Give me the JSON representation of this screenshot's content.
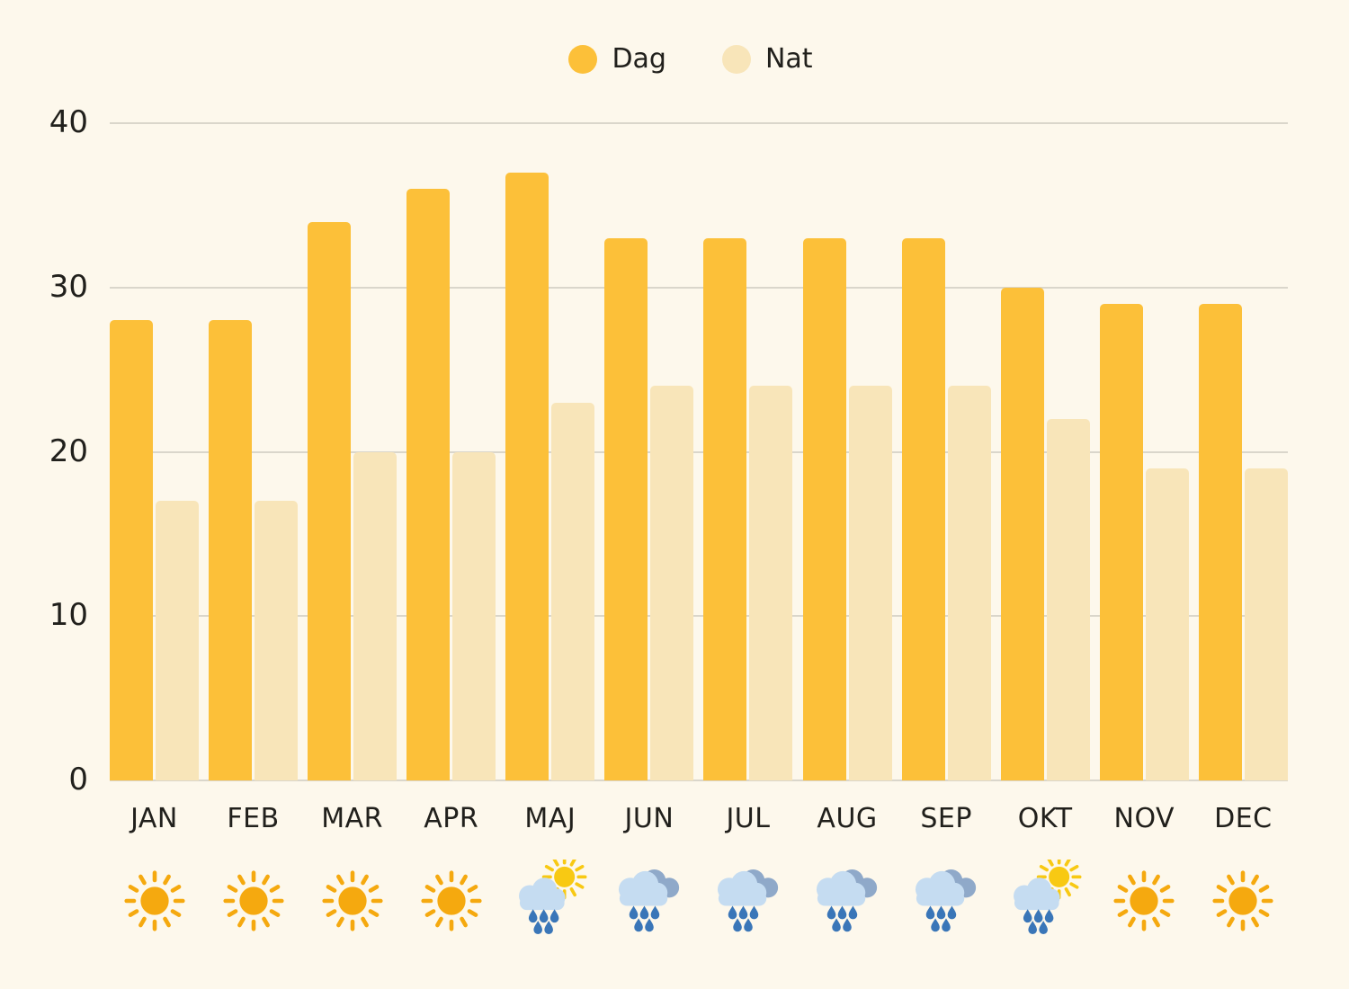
{
  "legend": {
    "dag_label": "Dag",
    "nat_label": "Nat"
  },
  "chart_data": {
    "type": "bar",
    "categories": [
      "JAN",
      "FEB",
      "MAR",
      "APR",
      "MAJ",
      "JUN",
      "JUL",
      "AUG",
      "SEP",
      "OKT",
      "NOV",
      "DEC"
    ],
    "series": [
      {
        "name": "Dag",
        "values": [
          28,
          28,
          34,
          36,
          37,
          33,
          33,
          33,
          33,
          30,
          29,
          29
        ],
        "color": "#FCC039"
      },
      {
        "name": "Nat",
        "values": [
          17,
          17,
          20,
          20,
          23,
          24,
          24,
          24,
          24,
          22,
          19,
          19
        ],
        "color": "#F8E5B9"
      }
    ],
    "title": "",
    "xlabel": "",
    "ylabel": "",
    "ylim": [
      0,
      40
    ],
    "yticks": [
      40,
      30,
      20,
      10,
      0
    ],
    "grid": true,
    "legend_position": "top-center",
    "icons": [
      "sun",
      "sun",
      "sun",
      "sun",
      "rain-sun",
      "rain-cloud",
      "rain-cloud",
      "rain-cloud",
      "rain-cloud",
      "rain-sun",
      "sun",
      "sun"
    ]
  },
  "colors": {
    "background": "#FDF8EC",
    "dag_bar": "#FCC039",
    "nat_bar": "#F8E5B9",
    "gridline": "#DAD6CB",
    "text": "#21201C",
    "sun": "#F5A90F",
    "sun_small": "#F8C913",
    "cloud_front": "#C5DCF1",
    "cloud_back": "#8FA9C9",
    "raindrop": "#3A76B8"
  }
}
